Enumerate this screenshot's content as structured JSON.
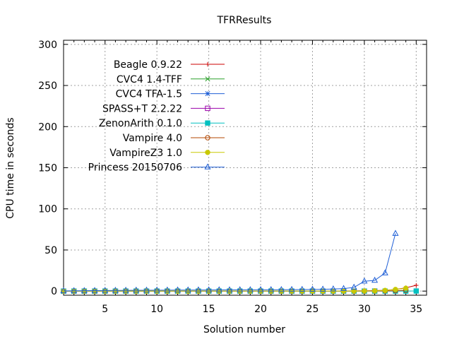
{
  "chart_data": {
    "type": "line",
    "title": "TFRResults",
    "xlabel": "Solution number",
    "ylabel": "CPU time in seconds",
    "xlim": [
      1,
      36
    ],
    "ylim": [
      -5,
      305
    ],
    "xticks": [
      5,
      10,
      15,
      20,
      25,
      30,
      35
    ],
    "yticks": [
      0,
      50,
      100,
      150,
      200,
      250,
      300
    ],
    "grid": true,
    "legend_position": "top-left",
    "series": [
      {
        "name": "Beagle 0.9.22",
        "color": "#cc0000",
        "marker": "plus",
        "x": [
          1,
          2,
          3,
          4,
          5,
          6,
          7,
          8,
          9,
          10,
          11,
          12,
          13,
          14,
          15,
          16,
          17,
          18,
          19,
          20,
          21,
          22,
          23,
          24,
          25,
          26,
          27,
          28,
          29,
          30,
          31,
          32,
          33,
          34,
          35
        ],
        "y": [
          0.1,
          0.1,
          0.1,
          0.1,
          0.1,
          0.1,
          0.1,
          0.1,
          0.1,
          0.1,
          0.1,
          0.1,
          0.1,
          0.1,
          0.1,
          0.1,
          0.1,
          0.1,
          0.1,
          0.1,
          0.1,
          0.1,
          0.1,
          0.1,
          0.1,
          0.1,
          0.2,
          0.2,
          0.3,
          0.4,
          0.6,
          1.0,
          2.0,
          4.0,
          7.0
        ]
      },
      {
        "name": "CVC4 1.4-TFF",
        "color": "#2ca02c",
        "marker": "x",
        "x": [
          1,
          2,
          3,
          4,
          5,
          6,
          7,
          8,
          9,
          10,
          11,
          12,
          13,
          14,
          15,
          16,
          17,
          18,
          19,
          20,
          21,
          22,
          23,
          24,
          25,
          26,
          27,
          28,
          29,
          30
        ],
        "y": [
          0,
          0,
          0,
          0,
          0,
          0,
          0,
          0,
          0,
          0,
          0,
          0,
          0,
          0,
          0,
          0,
          0,
          0,
          0,
          0,
          0,
          0,
          0,
          0,
          0,
          0,
          0,
          0,
          0,
          0.1
        ]
      },
      {
        "name": "CVC4 TFA-1.5",
        "color": "#1f5fd6",
        "marker": "star",
        "x": [
          1,
          2,
          3,
          4,
          5,
          6,
          7,
          8,
          9,
          10,
          11,
          12,
          13,
          14,
          15,
          16,
          17,
          18,
          19,
          20,
          21,
          22,
          23,
          24,
          25,
          26,
          27,
          28,
          29,
          30,
          31,
          32,
          33,
          34
        ],
        "y": [
          0,
          0,
          0,
          0,
          0,
          0,
          0,
          0,
          0,
          0,
          0,
          0,
          0,
          0,
          0,
          0,
          0,
          0,
          0,
          0,
          0,
          0,
          0,
          0,
          0,
          0,
          0,
          0,
          0,
          0,
          0,
          0,
          0,
          0.1
        ]
      },
      {
        "name": "SPASS+T 2.2.22",
        "color": "#9900aa",
        "marker": "square",
        "x": [
          1,
          2,
          3,
          4,
          5,
          6,
          7,
          8,
          9,
          10,
          11,
          12,
          13,
          14,
          15,
          16,
          17,
          18,
          19,
          20,
          21,
          22,
          23,
          24,
          25,
          26,
          27,
          28,
          29,
          30,
          31
        ],
        "y": [
          0,
          0,
          0,
          0,
          0,
          0,
          0,
          0,
          0,
          0,
          0,
          0,
          0,
          0,
          0,
          0,
          0,
          0,
          0,
          0,
          0,
          0,
          0,
          0,
          0,
          0,
          0,
          0,
          0,
          0,
          0.1
        ]
      },
      {
        "name": "ZenonArith 0.1.0",
        "color": "#00c0c0",
        "marker": "filled-square",
        "x": [
          1,
          2,
          3,
          4,
          5,
          6,
          7,
          8,
          9,
          10,
          11,
          12,
          13,
          14,
          15,
          16,
          17,
          18,
          19,
          20,
          21,
          22,
          23,
          24,
          25,
          26,
          27,
          28,
          29,
          30,
          31,
          32,
          33,
          34,
          35
        ],
        "y": [
          0,
          0,
          0,
          0,
          0,
          0,
          0,
          0,
          0,
          0,
          0,
          0,
          0,
          0,
          0,
          0,
          0,
          0,
          0,
          0,
          0,
          0,
          0,
          0,
          0,
          0,
          0,
          0,
          0,
          0,
          0,
          0,
          0,
          0,
          0.1
        ]
      },
      {
        "name": "Vampire 4.0",
        "color": "#b34700",
        "marker": "circle",
        "x": [
          1,
          2,
          3,
          4,
          5,
          6,
          7,
          8,
          9,
          10,
          11,
          12,
          13,
          14,
          15,
          16,
          17,
          18,
          19,
          20,
          21,
          22,
          23,
          24,
          25,
          26,
          27,
          28,
          29,
          30,
          31,
          32,
          33,
          34
        ],
        "y": [
          0,
          0,
          0,
          0,
          0,
          0,
          0,
          0,
          0,
          0,
          0,
          0,
          0,
          0,
          0,
          0,
          0,
          0,
          0,
          0,
          0,
          0,
          0,
          0,
          0,
          0,
          0,
          0,
          0,
          0,
          0.1,
          0.2,
          0.5,
          1.0
        ]
      },
      {
        "name": "VampireZ3 1.0",
        "color": "#c8c800",
        "marker": "filled-circle",
        "x": [
          1,
          2,
          3,
          4,
          5,
          6,
          7,
          8,
          9,
          10,
          11,
          12,
          13,
          14,
          15,
          16,
          17,
          18,
          19,
          20,
          21,
          22,
          23,
          24,
          25,
          26,
          27,
          28,
          29,
          30,
          31,
          32,
          33,
          34
        ],
        "y": [
          0,
          0,
          0,
          0,
          0,
          0,
          0,
          0,
          0,
          0,
          0,
          0,
          0,
          0,
          0,
          0,
          0,
          0,
          0,
          0,
          0,
          0,
          0,
          0,
          0,
          0,
          0,
          0,
          0,
          0.1,
          0.3,
          0.8,
          2.0,
          3.5
        ]
      },
      {
        "name": "Princess 20150706",
        "color": "#1f5fd6",
        "marker": "triangle",
        "x": [
          1,
          2,
          3,
          4,
          5,
          6,
          7,
          8,
          9,
          10,
          11,
          12,
          13,
          14,
          15,
          16,
          17,
          18,
          19,
          20,
          21,
          22,
          23,
          24,
          25,
          26,
          27,
          28,
          29,
          30,
          31,
          32,
          33
        ],
        "y": [
          0.3,
          0.4,
          0.5,
          0.6,
          0.7,
          0.8,
          0.9,
          1.0,
          1.0,
          1.1,
          1.1,
          1.2,
          1.2,
          1.3,
          1.3,
          1.4,
          1.4,
          1.5,
          1.5,
          1.6,
          1.6,
          1.7,
          1.8,
          1.9,
          2.0,
          2.2,
          2.5,
          3.0,
          4.5,
          12.0,
          13.0,
          22.0,
          70.0
        ]
      }
    ]
  }
}
